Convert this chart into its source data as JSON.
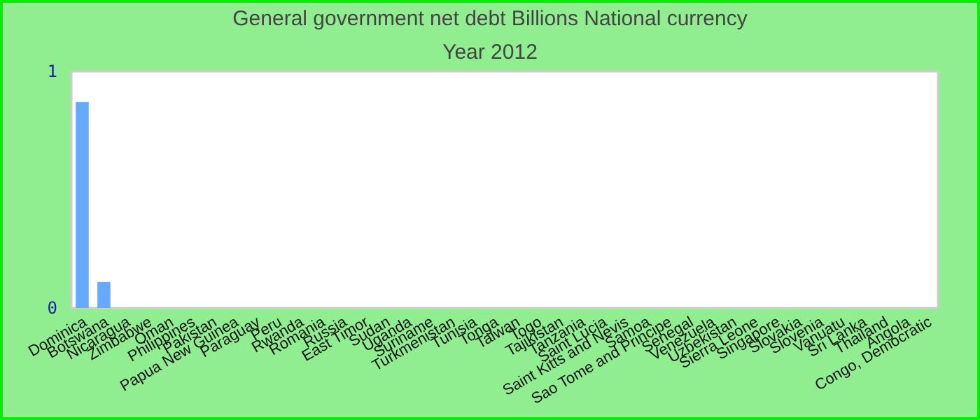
{
  "chart_data": {
    "type": "bar",
    "title": "General government net debt Billions National currency",
    "subtitle": "Year 2012",
    "categories": [
      "Dominica",
      "Botswana",
      "Nicaragua",
      "Zimbabwe",
      "Oman",
      "Philippines",
      "Pakistan",
      "Papua New Guinea",
      "Paraguay",
      "Peru",
      "Rwanda",
      "Romania",
      "Russia",
      "East Timor",
      "Sudan",
      "Uganda",
      "Suriname",
      "Turkmenistan",
      "Tunisia",
      "Tonga",
      "Taiwan",
      "Togo",
      "Tajikistan",
      "Tanzania",
      "Saint Lucia",
      "Saint Kitts and Nevis",
      "Samoa",
      "Sao Tome and Principe",
      "Senegal",
      "Venezuela",
      "Uzbekistan",
      "Sierra Leone",
      "Singapore",
      "Slovakia",
      "Slovenia",
      "Vanuatu",
      "Sri Lanka",
      "Thailand",
      "Angola",
      "Congo, Democratic"
    ],
    "values": [
      0.87,
      0.11,
      0,
      0,
      0,
      0,
      0,
      0,
      0,
      0,
      0,
      0,
      0,
      0,
      0,
      0,
      0,
      0,
      0,
      0,
      0,
      0,
      0,
      0,
      0,
      0,
      0,
      0,
      0,
      0,
      0,
      0,
      0,
      0,
      0,
      0,
      0,
      0,
      0,
      0
    ],
    "color": "#66aaff",
    "ylim": [
      0,
      1
    ],
    "yticks": [
      0,
      1
    ],
    "grid": false
  }
}
